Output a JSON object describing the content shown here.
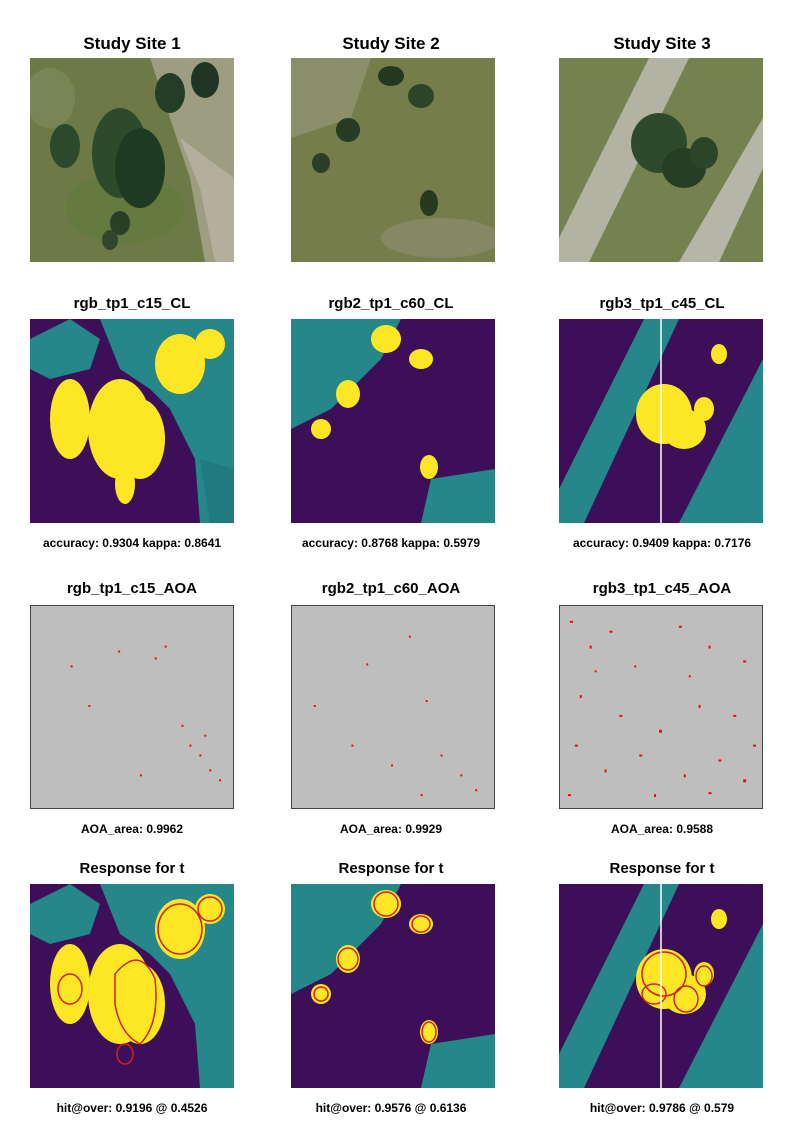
{
  "sites": [
    {
      "title": "Study Site 1",
      "cl_title": "rgb_tp1_c15_CL",
      "cl_caption": "accuracy: 0.9304 kappa: 0.8641",
      "aoa_title": "rgb_tp1_c15_AOA",
      "aoa_caption": "AOA_area: 0.9962",
      "resp_title": "Response for  t",
      "resp_caption": "hit@over:  0.9196 @ 0.4526"
    },
    {
      "title": "Study Site 2",
      "cl_title": "rgb2_tp1_c60_CL",
      "cl_caption": "accuracy: 0.8768 kappa: 0.5979",
      "aoa_title": "rgb2_tp1_c60_AOA",
      "aoa_caption": "AOA_area: 0.9929",
      "resp_title": "Response for  t",
      "resp_caption": "hit@over:  0.9576 @ 0.6136"
    },
    {
      "title": "Study Site 3",
      "cl_title": "rgb3_tp1_c45_CL",
      "cl_caption": "accuracy: 0.9409 kappa: 0.7176",
      "aoa_title": "rgb3_tp1_c45_AOA",
      "aoa_caption": "AOA_area: 0.9588",
      "resp_title": "Response for  t",
      "resp_caption": "hit@over:  0.9786 @ 0.579"
    }
  ],
  "colors": {
    "class_background": "#3d0f58",
    "class_teal": "#25878a",
    "class_tree": "#fde725",
    "aoa_gray": "#bebebe",
    "aoa_outside": "#ff0000",
    "outline": "#d32020"
  }
}
